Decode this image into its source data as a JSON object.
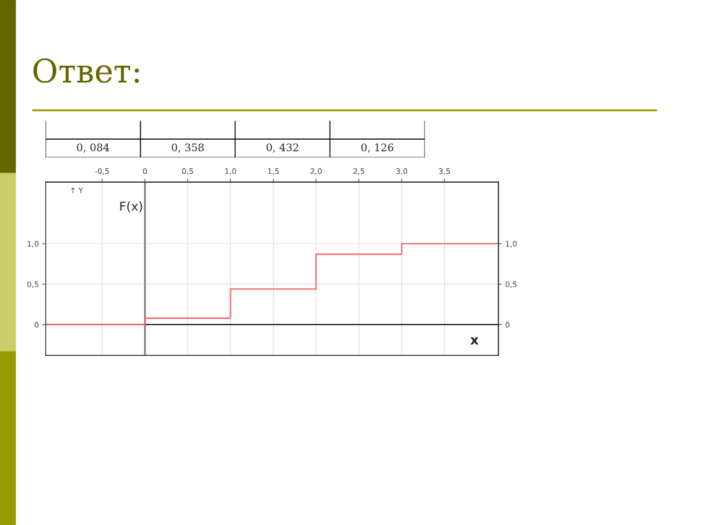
{
  "chart_data": {
    "type": "step",
    "title": "Ответ:",
    "xlabel": "x",
    "ylabel": "F(x)",
    "annotations": [
      "↑ Y",
      "0, 084",
      "0, 358",
      "0, 432",
      "0, 126"
    ],
    "x": [
      -1.16,
      0,
      1,
      2,
      3,
      4.13
    ],
    "series": [
      {
        "color": "#f07070",
        "values": [
          0,
          0.08,
          0.44,
          0.87,
          1.0,
          1.0
        ]
      }
    ],
    "xlim": [
      -1.16,
      4.13
    ],
    "xticks": [
      {
        "value": -0.5,
        "label": "-0,5"
      },
      0,
      {
        "value": 0.5,
        "label": "0,5"
      },
      {
        "value": 1,
        "label": "1,0"
      },
      {
        "value": 1.5,
        "label": "1,5"
      },
      {
        "value": 2,
        "label": "2,0"
      },
      {
        "value": 2.5,
        "label": "2,5"
      },
      {
        "value": 3,
        "label": "3,0"
      },
      {
        "value": 3.5,
        "label": "3,5"
      }
    ],
    "ylim": [
      -0.38,
      1.76
    ],
    "yticks": [
      0,
      {
        "value": 0.5,
        "label": "0,5"
      },
      {
        "value": 1,
        "label": "1,0"
      }
    ],
    "y2lim": [
      -0.38,
      1.76
    ],
    "y2ticks": [
      0,
      {
        "value": 0.5,
        "label": "0,5"
      },
      {
        "value": 1,
        "label": "1,0"
      }
    ],
    "ref_lines": [
      {
        "axis": "x",
        "value": 0,
        "color": "#888888"
      },
      {
        "axis": "y",
        "value": 0,
        "color": "#000000"
      }
    ],
    "grid": true
  }
}
